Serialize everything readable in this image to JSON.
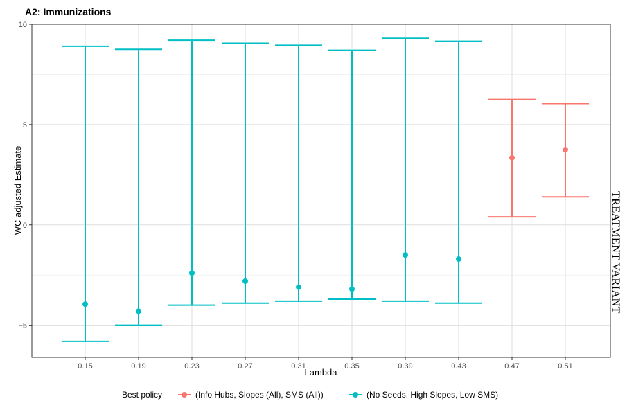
{
  "chart_data": {
    "type": "errorbar",
    "title": "A2: Immunizations",
    "xlabel": "Lambda",
    "ylabel": "WC adjusted Estimate",
    "ylim": [
      -6.6,
      10.0
    ],
    "yticks": [
      -5,
      0,
      5,
      10
    ],
    "categories": [
      "0.15",
      "0.19",
      "0.23",
      "0.27",
      "0.31",
      "0.35",
      "0.39",
      "0.43",
      "0.47",
      "0.51"
    ],
    "grid": true,
    "legend_position": "bottom",
    "legend_title": "Best policy",
    "side_label": "TREATMENT VARIANT",
    "series": [
      {
        "name": "(Info Hubs, Slopes (All), SMS (All))",
        "color": "#f8766d",
        "points": [
          {
            "x": "0.47",
            "estimate": 3.35,
            "lower": 0.4,
            "upper": 6.25
          },
          {
            "x": "0.51",
            "estimate": 3.75,
            "lower": 1.4,
            "upper": 6.05
          }
        ]
      },
      {
        "name": "(No Seeds, High Slopes, Low SMS)",
        "color": "#00bfc4",
        "points": [
          {
            "x": "0.15",
            "estimate": -3.95,
            "lower": -5.8,
            "upper": 8.9
          },
          {
            "x": "0.19",
            "estimate": -4.3,
            "lower": -5.0,
            "upper": 8.75
          },
          {
            "x": "0.23",
            "estimate": -2.4,
            "lower": -4.0,
            "upper": 9.2
          },
          {
            "x": "0.27",
            "estimate": -2.8,
            "lower": -3.9,
            "upper": 9.05
          },
          {
            "x": "0.31",
            "estimate": -3.1,
            "lower": -3.8,
            "upper": 8.95
          },
          {
            "x": "0.35",
            "estimate": -3.2,
            "lower": -3.7,
            "upper": 8.7
          },
          {
            "x": "0.39",
            "estimate": -1.5,
            "lower": -3.8,
            "upper": 9.3
          },
          {
            "x": "0.43",
            "estimate": -1.7,
            "lower": -3.9,
            "upper": 9.15
          }
        ]
      }
    ]
  }
}
